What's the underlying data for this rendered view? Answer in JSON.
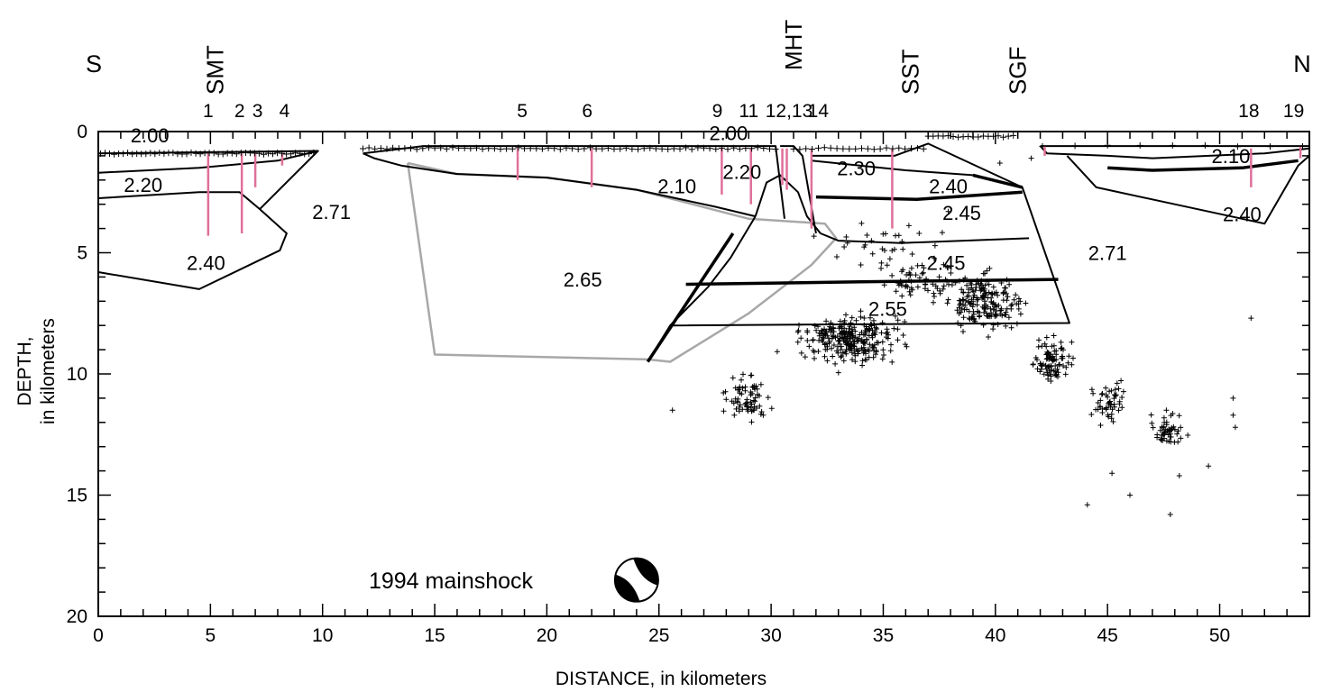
{
  "axes": {
    "xlabel": "DISTANCE, in kilometers",
    "ylabel_line1": "DEPTH,",
    "ylabel_line2": "in kilometers",
    "xlim": [
      0,
      54
    ],
    "ylim": [
      0,
      20
    ],
    "x_ticks": [
      "0",
      "5",
      "10",
      "15",
      "20",
      "25",
      "30",
      "35",
      "40",
      "45",
      "50"
    ],
    "y_ticks": [
      "0",
      "5",
      "10",
      "15",
      "20"
    ]
  },
  "direction_labels": {
    "south": "S",
    "north": "N"
  },
  "fault_labels": [
    {
      "text": "SMT",
      "x": 5.2
    },
    {
      "text": "MHT",
      "x": 31.0
    },
    {
      "text": "SST",
      "x": 36.2
    },
    {
      "text": "SGF",
      "x": 41.0
    }
  ],
  "station_labels": [
    {
      "text": "1",
      "x": 4.9
    },
    {
      "text": "2",
      "x": 6.3
    },
    {
      "text": "3",
      "x": 7.1
    },
    {
      "text": "4",
      "x": 8.3
    },
    {
      "text": "5",
      "x": 18.9
    },
    {
      "text": "6",
      "x": 21.8
    },
    {
      "text": "9",
      "x": 27.6
    },
    {
      "text": "11",
      "x": 29.0
    },
    {
      "text": "12,13",
      "x": 30.8
    },
    {
      "text": "14",
      "x": 32.1
    },
    {
      "text": "18",
      "x": 51.3
    },
    {
      "text": "19",
      "x": 53.3
    }
  ],
  "density_labels": [
    {
      "text": "2.00",
      "x": 2.3,
      "y": 0.15
    },
    {
      "text": "2.20",
      "x": 2.0,
      "y": 2.2
    },
    {
      "text": "2.71",
      "x": 10.4,
      "y": 3.3
    },
    {
      "text": "2.40",
      "x": 4.8,
      "y": 5.4
    },
    {
      "text": "2.65",
      "x": 21.6,
      "y": 6.1
    },
    {
      "text": "2.00",
      "x": 28.1,
      "y": 0.05
    },
    {
      "text": "2.20",
      "x": 28.7,
      "y": 1.65
    },
    {
      "text": "2.10",
      "x": 25.8,
      "y": 2.25
    },
    {
      "text": "2.30",
      "x": 33.8,
      "y": 1.5
    },
    {
      "text": "2.40",
      "x": 37.9,
      "y": 2.25
    },
    {
      "text": "2.45",
      "x": 38.5,
      "y": 3.35
    },
    {
      "text": "2.45",
      "x": 37.8,
      "y": 5.4
    },
    {
      "text": "2.55",
      "x": 35.2,
      "y": 7.3
    },
    {
      "text": "2.71",
      "x": 45.0,
      "y": 5.0
    },
    {
      "text": "2.10",
      "x": 50.5,
      "y": 1.0
    },
    {
      "text": "2.40",
      "x": 51.0,
      "y": 3.4
    }
  ],
  "mainshock_label": "1994 mainshock",
  "mainshock_x": 24.0,
  "mainshock_y": 18.5,
  "colors": {
    "model": "#000000",
    "gray_body": "#a8a8a8",
    "wells": "#e0709a"
  },
  "chart_data": {
    "type": "scatter",
    "title": "",
    "xlabel": "DISTANCE, in kilometers",
    "ylabel": "DEPTH, in kilometers",
    "xlim": [
      0,
      54
    ],
    "ylim": [
      20,
      0
    ],
    "y_inverted": true,
    "grid": false,
    "polylines": [
      {
        "style": "thin",
        "points": [
          [
            0,
            0.9
          ],
          [
            9.8,
            0.8
          ],
          [
            7.2,
            3.2
          ],
          [
            6.3,
            2.5
          ],
          [
            4.5,
            2.5
          ],
          [
            0,
            2.75
          ]
        ]
      },
      {
        "style": "thin",
        "points": [
          [
            0,
            1.7
          ],
          [
            4.5,
            1.5
          ],
          [
            8.0,
            1.2
          ],
          [
            9.8,
            0.8
          ]
        ]
      },
      {
        "style": "thin",
        "points": [
          [
            7.2,
            3.2
          ],
          [
            8.4,
            4.2
          ],
          [
            8.1,
            4.9
          ],
          [
            4.5,
            6.5
          ],
          [
            0,
            5.8
          ]
        ]
      },
      {
        "style": "thin",
        "points": [
          [
            11.8,
            0.9
          ],
          [
            14.5,
            0.6
          ],
          [
            30.2,
            0.6
          ],
          [
            30.6,
            3.6
          ]
        ]
      },
      {
        "style": "thin",
        "points": [
          [
            11.8,
            0.9
          ],
          [
            12.3,
            1.1
          ],
          [
            13.5,
            1.4
          ],
          [
            16,
            1.75
          ],
          [
            20,
            1.9
          ],
          [
            24,
            2.4
          ],
          [
            27.5,
            3.1
          ],
          [
            29.3,
            3.5
          ]
        ]
      },
      {
        "style": "thin",
        "points": [
          [
            29.3,
            3.5
          ],
          [
            29.8,
            2.1
          ],
          [
            30.4,
            1.8
          ],
          [
            31.2,
            2.5
          ],
          [
            31.6,
            3.5
          ],
          [
            32.2,
            4.2
          ]
        ]
      },
      {
        "style": "thin",
        "points": [
          [
            30.4,
            0.6
          ],
          [
            31.0,
            0.6
          ],
          [
            31.4,
            1.0
          ],
          [
            32.0,
            4.2
          ]
        ]
      },
      {
        "style": "thin",
        "points": [
          [
            31.8,
            1.0
          ],
          [
            35.5,
            1.0
          ],
          [
            37.0,
            0.5
          ],
          [
            41.2,
            2.3
          ],
          [
            43.3,
            7.9
          ],
          [
            25.5,
            8.0
          ]
        ]
      },
      {
        "style": "thin",
        "points": [
          [
            31.8,
            1.2
          ],
          [
            36,
            1.6
          ],
          [
            39,
            1.8
          ]
        ]
      },
      {
        "style": "thick",
        "points": [
          [
            32.0,
            2.7
          ],
          [
            36.5,
            2.8
          ],
          [
            41.2,
            2.5
          ]
        ]
      },
      {
        "style": "thick",
        "points": [
          [
            39,
            1.8
          ],
          [
            41.2,
            2.3
          ]
        ]
      },
      {
        "style": "thin",
        "points": [
          [
            32.2,
            4.2
          ],
          [
            33.0,
            4.5
          ],
          [
            35.8,
            4.6
          ],
          [
            41.5,
            4.4
          ]
        ]
      },
      {
        "style": "thick",
        "points": [
          [
            26.2,
            6.3
          ],
          [
            34,
            6.2
          ],
          [
            42.8,
            6.1
          ]
        ]
      },
      {
        "style": "thin",
        "points": [
          [
            29.3,
            3.5
          ],
          [
            28.2,
            5.2
          ],
          [
            27.2,
            6.4
          ],
          [
            25.5,
            8.0
          ],
          [
            24.5,
            9.5
          ]
        ]
      },
      {
        "style": "thick",
        "points": [
          [
            24.5,
            9.5
          ],
          [
            28.3,
            4.2
          ]
        ]
      },
      {
        "style": "gray",
        "points": [
          [
            13.8,
            1.3
          ],
          [
            15.0,
            9.2
          ],
          [
            24.5,
            9.4
          ],
          [
            25.5,
            9.5
          ],
          [
            29.0,
            7.5
          ],
          [
            31.8,
            5.5
          ],
          [
            32.9,
            4.4
          ],
          [
            32.4,
            3.8
          ],
          [
            29.0,
            3.6
          ],
          [
            24.0,
            2.4
          ],
          [
            20,
            1.9
          ],
          [
            16,
            1.75
          ],
          [
            13.8,
            1.3
          ]
        ]
      },
      {
        "style": "thin",
        "points": [
          [
            42.0,
            0.6
          ],
          [
            42.3,
            0.9
          ],
          [
            45,
            1.0
          ],
          [
            47,
            1.1
          ],
          [
            52,
            0.9
          ],
          [
            54,
            0.7
          ]
        ]
      },
      {
        "style": "thin",
        "points": [
          [
            42.0,
            0.6
          ],
          [
            54,
            0.6
          ]
        ]
      },
      {
        "style": "thin",
        "points": [
          [
            43.2,
            1.0
          ],
          [
            44.5,
            2.3
          ],
          [
            48,
            3.0
          ],
          [
            52,
            3.8
          ],
          [
            53.5,
            1.4
          ],
          [
            54,
            1.0
          ]
        ]
      },
      {
        "style": "thick",
        "points": [
          [
            45,
            1.5
          ],
          [
            47,
            1.6
          ],
          [
            51,
            1.5
          ],
          [
            53.5,
            1.2
          ]
        ]
      }
    ],
    "wells": [
      {
        "x": 4.9,
        "top": 0.9,
        "bottom": 4.3
      },
      {
        "x": 6.4,
        "top": 0.9,
        "bottom": 4.2
      },
      {
        "x": 7.0,
        "top": 0.9,
        "bottom": 2.3
      },
      {
        "x": 8.2,
        "top": 0.9,
        "bottom": 1.4
      },
      {
        "x": 18.7,
        "top": 0.7,
        "bottom": 2.0
      },
      {
        "x": 22.0,
        "top": 0.7,
        "bottom": 2.3
      },
      {
        "x": 27.8,
        "top": 0.7,
        "bottom": 2.6
      },
      {
        "x": 29.1,
        "top": 0.7,
        "bottom": 3.0
      },
      {
        "x": 30.5,
        "top": 0.7,
        "bottom": 2.2
      },
      {
        "x": 30.7,
        "top": 0.7,
        "bottom": 2.4
      },
      {
        "x": 31.8,
        "top": 0.7,
        "bottom": 4.0
      },
      {
        "x": 35.4,
        "top": 0.7,
        "bottom": 4.0
      },
      {
        "x": 42.2,
        "top": 0.6,
        "bottom": 1.0
      },
      {
        "x": 51.4,
        "top": 0.7,
        "bottom": 2.3
      },
      {
        "x": 53.6,
        "top": 0.6,
        "bottom": 1.1
      }
    ],
    "surface_markers": [
      {
        "x0": 0.1,
        "x1": 9.6,
        "y": 0.9,
        "n": 48
      },
      {
        "x0": 11.8,
        "x1": 30.2,
        "y": 0.7,
        "n": 70
      },
      {
        "x0": 31.0,
        "x1": 36.8,
        "y": 0.7,
        "n": 22
      },
      {
        "x0": 37.0,
        "x1": 40.8,
        "y": 0.2,
        "n": 18
      },
      {
        "x0": 42.1,
        "x1": 53.7,
        "y": 0.6,
        "n": 9
      }
    ],
    "seismicity_clusters": [
      {
        "cx": 33.5,
        "cy": 8.6,
        "sx": 2.4,
        "sy": 1.1,
        "n": 260
      },
      {
        "cx": 39.5,
        "cy": 7.0,
        "sx": 1.8,
        "sy": 1.2,
        "n": 180
      },
      {
        "cx": 37.0,
        "cy": 6.2,
        "sx": 2.2,
        "sy": 1.0,
        "n": 70
      },
      {
        "cx": 29.0,
        "cy": 11.0,
        "sx": 1.2,
        "sy": 1.1,
        "n": 70
      },
      {
        "cx": 42.5,
        "cy": 9.5,
        "sx": 1.0,
        "sy": 1.0,
        "n": 90
      },
      {
        "cx": 45.0,
        "cy": 11.2,
        "sx": 0.8,
        "sy": 0.9,
        "n": 50
      },
      {
        "cx": 47.8,
        "cy": 12.3,
        "sx": 0.9,
        "sy": 0.8,
        "n": 50
      },
      {
        "cx": 35.0,
        "cy": 4.5,
        "sx": 3.0,
        "sy": 0.8,
        "n": 25
      }
    ],
    "isolated_events": [
      [
        25.6,
        11.5
      ],
      [
        50.6,
        11.0
      ],
      [
        50.7,
        12.2
      ],
      [
        50.6,
        11.7
      ],
      [
        51.4,
        7.7
      ],
      [
        46.0,
        15.0
      ],
      [
        47.8,
        15.8
      ],
      [
        44.1,
        15.4
      ],
      [
        45.2,
        14.1
      ],
      [
        49.5,
        13.8
      ],
      [
        48.2,
        14.2
      ],
      [
        41.6,
        1.1
      ],
      [
        40.2,
        1.3
      ],
      [
        37.9,
        3.3
      ],
      [
        36.6,
        4.2
      ],
      [
        34.0,
        5.5
      ],
      [
        33.4,
        4.6
      ]
    ]
  }
}
